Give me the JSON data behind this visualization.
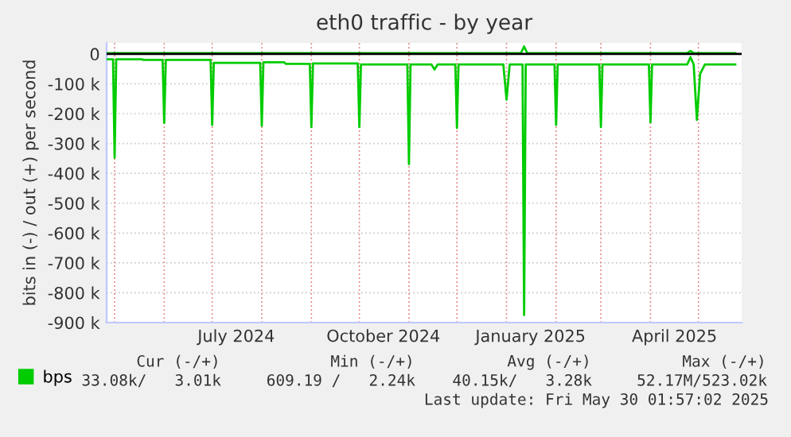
{
  "chart_data": {
    "type": "line",
    "title": "eth0 traffic - by year",
    "ylabel": "bits in (-) / out (+) per second",
    "xlim": [
      "2024-04-26",
      "2025-05-28"
    ],
    "xticks": [
      {
        "value": "2024-05-01",
        "label": null
      },
      {
        "value": "2024-06-01",
        "label": null
      },
      {
        "value": "2024-07-01",
        "label": null
      },
      {
        "value": "2024-07-16",
        "label": "July 2024"
      },
      {
        "value": "2024-08-01",
        "label": null
      },
      {
        "value": "2024-09-01",
        "label": null
      },
      {
        "value": "2024-10-01",
        "label": null
      },
      {
        "value": "2024-10-16",
        "label": "October 2024"
      },
      {
        "value": "2024-11-01",
        "label": null
      },
      {
        "value": "2024-12-01",
        "label": null
      },
      {
        "value": "2025-01-01",
        "label": null
      },
      {
        "value": "2025-01-16",
        "label": "January 2025"
      },
      {
        "value": "2025-02-01",
        "label": null
      },
      {
        "value": "2025-03-01",
        "label": null
      },
      {
        "value": "2025-04-01",
        "label": null
      },
      {
        "value": "2025-04-16",
        "label": "April 2025"
      },
      {
        "value": "2025-05-01",
        "label": null
      }
    ],
    "ylim": [
      -900000,
      37000
    ],
    "yticks": [
      0,
      {
        "value": -100000,
        "label": "-100 k"
      },
      {
        "value": -200000,
        "label": "-200 k"
      },
      {
        "value": -300000,
        "label": "-300 k"
      },
      {
        "value": -400000,
        "label": "-400 k"
      },
      {
        "value": -500000,
        "label": "-500 k"
      },
      {
        "value": -600000,
        "label": "-600 k"
      },
      {
        "value": -700000,
        "label": "-700 k"
      },
      {
        "value": -800000,
        "label": "-800 k"
      },
      {
        "value": -900000,
        "label": "-900 k"
      }
    ],
    "grid": true,
    "legend": "bottom",
    "ref_lines": [
      {
        "axis": "y",
        "value": 0,
        "color": "#000000"
      }
    ],
    "series": [
      {
        "name": "bps",
        "color": "#00cc00",
        "x": [
          "2024-04-26",
          "2024-04-30",
          "2024-05-01",
          "2024-05-02",
          "2024-05-18",
          "2024-05-19",
          "2024-05-31",
          "2024-06-01",
          "2024-06-02",
          "2024-06-30",
          "2024-07-01",
          "2024-07-02",
          "2024-07-31",
          "2024-08-01",
          "2024-08-02",
          "2024-08-15",
          "2024-08-16",
          "2024-08-31",
          "2024-09-01",
          "2024-09-02",
          "2024-09-30",
          "2024-10-01",
          "2024-10-02",
          "2024-10-31",
          "2024-11-01",
          "2024-11-02",
          "2024-11-15",
          "2024-11-17",
          "2024-11-19",
          "2024-11-30",
          "2024-12-01",
          "2024-12-02",
          "2024-12-30",
          "2025-01-01",
          "2025-01-03",
          "2025-01-11",
          "2025-01-12",
          "2025-01-13",
          "2025-01-31",
          "2025-02-01",
          "2025-02-02",
          "2025-02-28",
          "2025-03-01",
          "2025-03-02",
          "2025-03-31",
          "2025-04-01",
          "2025-04-02",
          "2025-04-24",
          "2025-04-26",
          "2025-04-28",
          "2025-04-30",
          "2025-05-02",
          "2025-05-05",
          "2025-05-24"
        ],
        "values": [
          -18000,
          -18000,
          -348000,
          -18000,
          -18000,
          -20000,
          -20000,
          -231000,
          -20000,
          -20000,
          -238000,
          -30000,
          -30000,
          -241000,
          -28000,
          -28000,
          -33000,
          -33000,
          -245000,
          -32000,
          -32000,
          -245000,
          -35000,
          -35000,
          -369000,
          -35000,
          -35000,
          -52000,
          -35000,
          -35000,
          -248000,
          -35000,
          -35000,
          -153000,
          -35000,
          -35000,
          -875000,
          -35000,
          -35000,
          -238000,
          -35000,
          -35000,
          -245000,
          -35000,
          -35000,
          -229000,
          -35000,
          -35000,
          -11000,
          -35000,
          -221000,
          -67000,
          -35000,
          -35000
        ]
      },
      {
        "color": "#00cc00",
        "x": [
          "2024-04-26",
          "2025-01-10",
          "2025-01-12",
          "2025-01-14",
          "2025-04-24",
          "2025-04-26",
          "2025-04-28",
          "2025-05-24"
        ],
        "values": [
          3000,
          3000,
          25000,
          3000,
          3000,
          10000,
          3000,
          3000
        ]
      }
    ],
    "annotations": [
      "Cur (-/+)",
      "Min (-/+)",
      "Avg (-/+)",
      "Max (-/+)",
      "33.08k/   3.01k",
      "609.19 /   2.24k",
      "40.15k/   3.28k",
      "52.17M/523.02k",
      "Last update: Fri May 30 01:57:02 2025"
    ]
  }
}
